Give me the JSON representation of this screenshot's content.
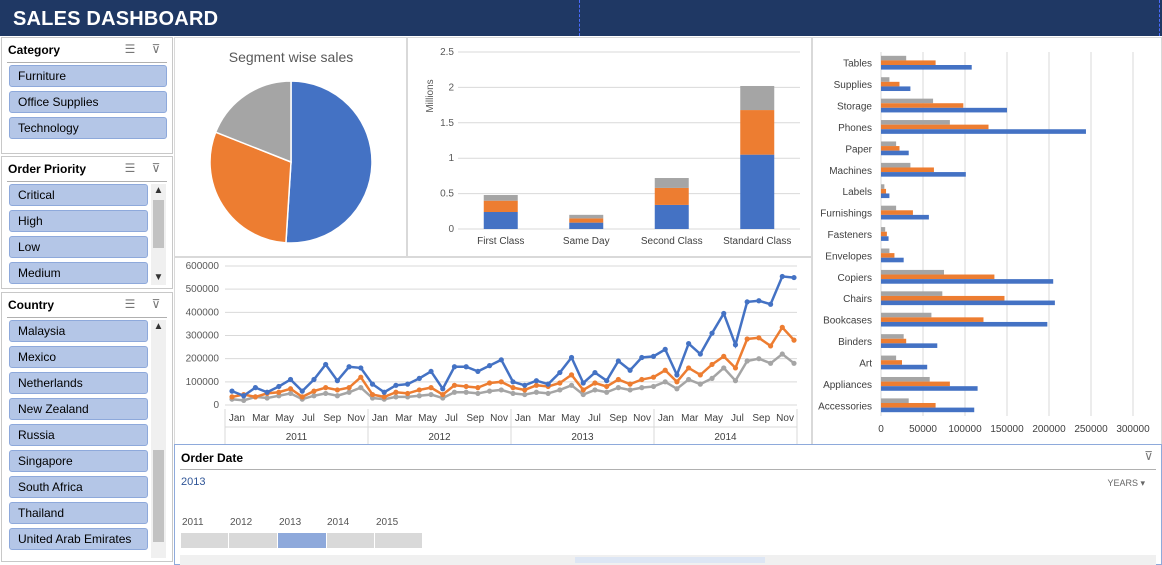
{
  "title": "SALES DASHBOARD",
  "slicers": {
    "category": {
      "title": "Category",
      "items": [
        "Furniture",
        "Office Supplies",
        "Technology"
      ]
    },
    "order_priority": {
      "title": "Order Priority",
      "items": [
        "Critical",
        "High",
        "Low",
        "Medium"
      ]
    },
    "country": {
      "title": "Country",
      "items": [
        "Malaysia",
        "Mexico",
        "Netherlands",
        "New Zealand",
        "Russia",
        "Singapore",
        "South Africa",
        "Thailand",
        "United Arab Emirates"
      ]
    }
  },
  "icons": {
    "multi_select": "multi-select-icon",
    "clear_filter": "clear-filter-icon",
    "scroll_up": "scroll-up-arrow-icon",
    "scroll_down": "scroll-down-arrow-icon"
  },
  "colors": {
    "title_bg": "#1f3864",
    "series_blue": "#4472c4",
    "series_orange": "#ed7d31",
    "series_gray": "#a5a5a5",
    "slicer_item": "#b4c6e7"
  },
  "pie_chart": {
    "chart_data": {
      "type": "pie",
      "title": "Segment wise sales",
      "values": [
        51,
        30,
        19
      ],
      "colors": [
        "#4472c4",
        "#ed7d31",
        "#a5a5a5"
      ]
    }
  },
  "column_chart": {
    "chart_data": {
      "type": "bar",
      "stacked": true,
      "categories": [
        "First Class",
        "Same Day",
        "Second Class",
        "Standard Class"
      ],
      "series": [
        {
          "values": [
            0.24,
            0.09,
            0.34,
            1.05
          ],
          "color": "#4472c4"
        },
        {
          "values": [
            0.16,
            0.06,
            0.24,
            0.63
          ],
          "color": "#ed7d31"
        },
        {
          "values": [
            0.08,
            0.05,
            0.14,
            0.34
          ],
          "color": "#a5a5a5"
        }
      ],
      "yticks": [
        "0",
        "0.5",
        "1",
        "1.5",
        "2",
        "2.5"
      ],
      "ylabel": "Millions",
      "ylim": [
        0,
        2.5
      ],
      "grid": true
    }
  },
  "line_chart": {
    "chart_data": {
      "type": "line",
      "month_labels": [
        "Jan",
        "Mar",
        "May",
        "Jul",
        "Sep",
        "Nov",
        "Jan",
        "Mar",
        "May",
        "Jul",
        "Sep",
        "Nov",
        "Jan",
        "Mar",
        "May",
        "Jul",
        "Sep",
        "Nov",
        "Jan",
        "Mar",
        "May",
        "Jul",
        "Sep",
        "Nov"
      ],
      "years": [
        "2011",
        "2012",
        "2013",
        "2014"
      ],
      "yticks": [
        "0",
        "100000",
        "200000",
        "300000",
        "400000",
        "500000",
        "600000"
      ],
      "ylim": [
        0,
        600000
      ],
      "grid": true,
      "series": [
        {
          "color": "#4472c4",
          "values": [
            60000,
            40000,
            75000,
            55000,
            80000,
            110000,
            60000,
            110000,
            175000,
            105000,
            165000,
            160000,
            90000,
            55000,
            85000,
            90000,
            115000,
            145000,
            70000,
            165000,
            165000,
            145000,
            170000,
            195000,
            100000,
            85000,
            105000,
            90000,
            140000,
            205000,
            95000,
            140000,
            105000,
            190000,
            150000,
            205000,
            210000,
            240000,
            130000,
            265000,
            220000,
            310000,
            395000,
            260000,
            445000,
            450000,
            435000,
            555000,
            550000
          ]
        },
        {
          "color": "#ed7d31",
          "values": [
            35000,
            45000,
            35000,
            50000,
            55000,
            70000,
            35000,
            60000,
            75000,
            65000,
            75000,
            120000,
            45000,
            35000,
            55000,
            50000,
            65000,
            75000,
            45000,
            85000,
            80000,
            75000,
            95000,
            100000,
            75000,
            65000,
            85000,
            80000,
            95000,
            130000,
            65000,
            95000,
            80000,
            110000,
            90000,
            110000,
            120000,
            150000,
            100000,
            160000,
            130000,
            175000,
            210000,
            160000,
            285000,
            290000,
            255000,
            335000,
            280000
          ]
        },
        {
          "color": "#a5a5a5",
          "values": [
            25000,
            20000,
            35000,
            30000,
            40000,
            50000,
            25000,
            40000,
            50000,
            40000,
            55000,
            75000,
            30000,
            25000,
            35000,
            35000,
            40000,
            45000,
            30000,
            55000,
            55000,
            50000,
            60000,
            65000,
            50000,
            45000,
            55000,
            50000,
            65000,
            85000,
            45000,
            65000,
            55000,
            75000,
            65000,
            75000,
            80000,
            100000,
            70000,
            110000,
            90000,
            115000,
            160000,
            105000,
            190000,
            200000,
            180000,
            220000,
            180000
          ]
        }
      ]
    }
  },
  "bar_chart": {
    "chart_data": {
      "type": "bar",
      "orientation": "horizontal",
      "categories": [
        "Tables",
        "Supplies",
        "Storage",
        "Phones",
        "Paper",
        "Machines",
        "Labels",
        "Furnishings",
        "Fasteners",
        "Envelopes",
        "Copiers",
        "Chairs",
        "Bookcases",
        "Binders",
        "Art",
        "Appliances",
        "Accessories"
      ],
      "series": [
        {
          "color": "#a5a5a5",
          "values": [
            30000,
            10000,
            62000,
            82000,
            18000,
            35000,
            4000,
            18000,
            5000,
            10000,
            75000,
            73000,
            60000,
            27000,
            18000,
            58000,
            33000
          ]
        },
        {
          "color": "#ed7d31",
          "values": [
            65000,
            22000,
            98000,
            128000,
            22000,
            63000,
            6000,
            38000,
            7000,
            16000,
            135000,
            147000,
            122000,
            30000,
            25000,
            82000,
            65000
          ]
        },
        {
          "color": "#4472c4",
          "values": [
            108000,
            35000,
            150000,
            244000,
            33000,
            101000,
            10000,
            57000,
            9000,
            27000,
            205000,
            207000,
            198000,
            67000,
            55000,
            115000,
            111000
          ]
        }
      ],
      "xticks": [
        "0",
        "50000",
        "100000",
        "150000",
        "200000",
        "250000",
        "300000"
      ],
      "xlim": [
        0,
        300000
      ],
      "grid": true
    }
  },
  "timeline": {
    "title": "Order Date",
    "selected": "2013",
    "level": "YEARS",
    "years": [
      "2011",
      "2012",
      "2013",
      "2014",
      "2015"
    ]
  }
}
